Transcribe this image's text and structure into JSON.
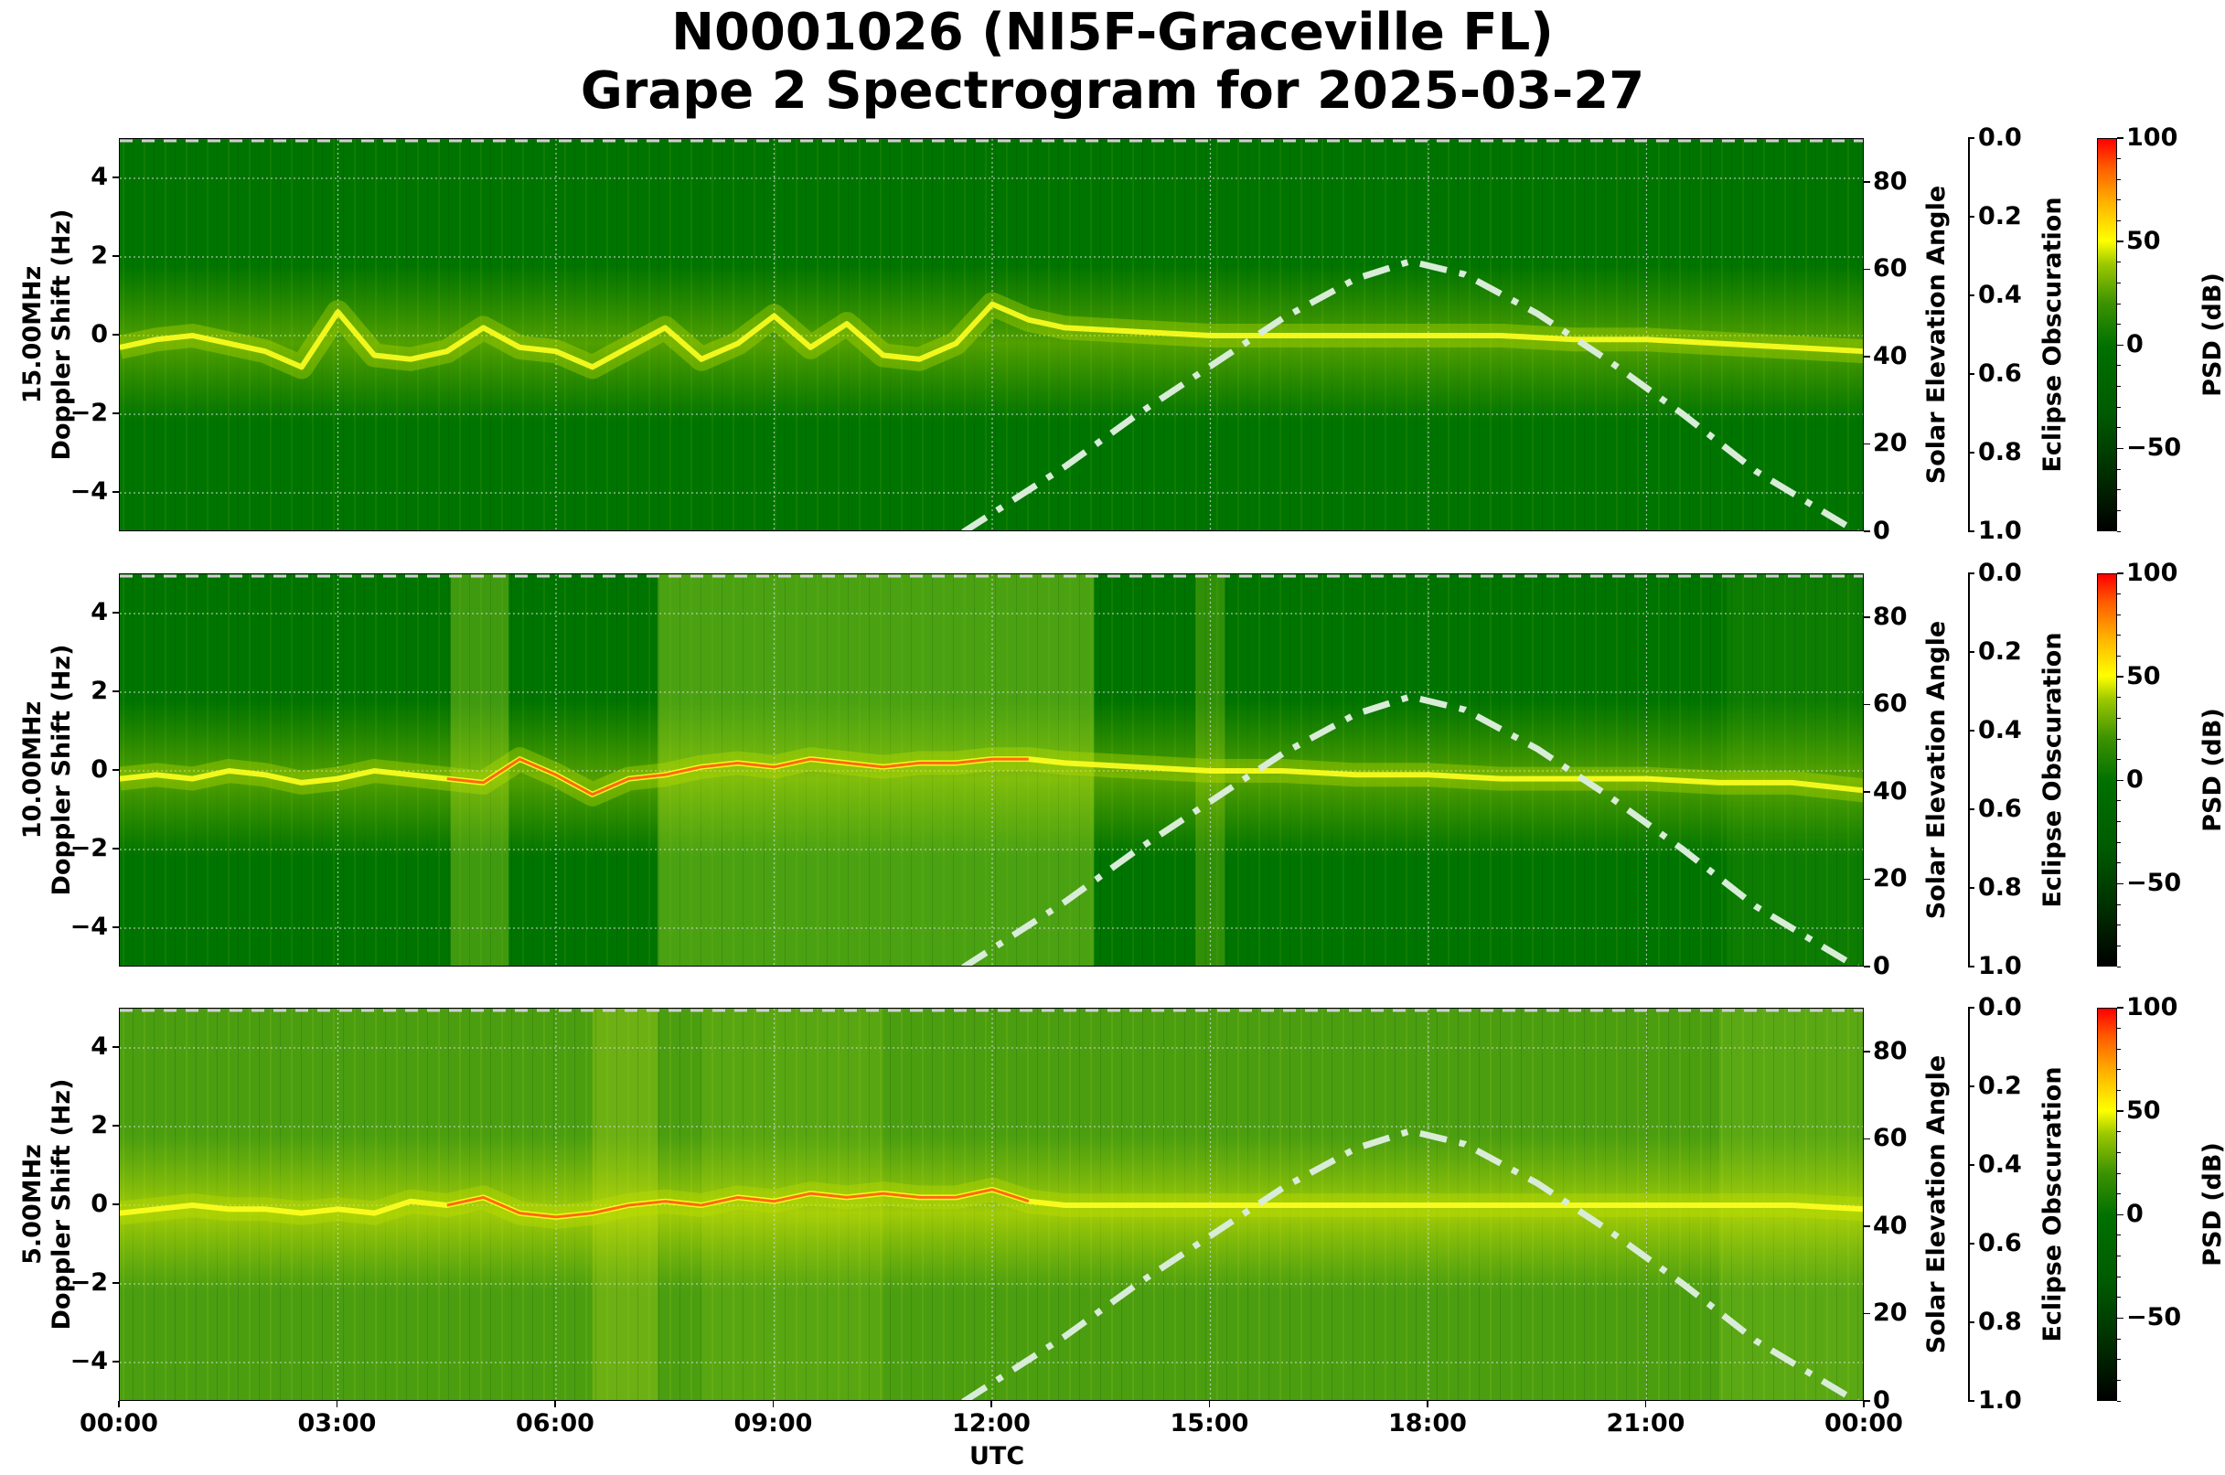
{
  "title": {
    "line1": "N0001026 (NI5F-Graceville FL)",
    "line2": "Grape 2 Spectrogram for 2025-03-27"
  },
  "panels": [
    {
      "freq_label": "15.00MHz",
      "ylabel": "Doppler Shift (Hz)",
      "right_label": "Solar Elevation Angle",
      "eclipse_label": "Eclipse Obscuration",
      "cbar_label": "PSD (dB)"
    },
    {
      "freq_label": "10.00MHz",
      "ylabel": "Doppler Shift (Hz)",
      "right_label": "Solar Elevation Angle",
      "eclipse_label": "Eclipse Obscuration",
      "cbar_label": "PSD (dB)"
    },
    {
      "freq_label": "5.00MHz",
      "ylabel": "Doppler Shift (Hz)",
      "right_label": "Solar Elevation Angle",
      "eclipse_label": "Eclipse Obscuration",
      "cbar_label": "PSD (dB)"
    }
  ],
  "axes": {
    "y_ticks": [
      "4",
      "2",
      "0",
      "−2",
      "−4"
    ],
    "elev_ticks": [
      "80",
      "60",
      "40",
      "20",
      "0"
    ],
    "eclipse_ticks": [
      "0.0",
      "0.2",
      "0.4",
      "0.6",
      "0.8",
      "1.0"
    ],
    "cbar_ticks": [
      "100",
      "50",
      "0",
      "−50"
    ],
    "x_ticks": [
      "00:00",
      "03:00",
      "06:00",
      "09:00",
      "12:00",
      "15:00",
      "18:00",
      "21:00",
      "00:00"
    ],
    "xlabel": "UTC"
  },
  "colors": {
    "background_dark": "#007000",
    "signal": "#ffff00",
    "strong": "#ff3000",
    "solar_curve": "#d8ecd8",
    "grid": "#d0d0d0"
  },
  "chart_data": {
    "type": "heatmap",
    "title": "N0001026 (NI5F-Graceville FL) Grape 2 Spectrogram for 2025-03-27",
    "xlabel": "UTC",
    "ylabel": "Doppler Shift (Hz)",
    "x_range_hours": [
      0,
      24
    ],
    "x_tick_labels": [
      "00:00",
      "03:00",
      "06:00",
      "09:00",
      "12:00",
      "15:00",
      "18:00",
      "21:00",
      "00:00"
    ],
    "ylim": [
      -5,
      5
    ],
    "secondary_y": {
      "label": "Solar Elevation Angle",
      "ylim": [
        0,
        90
      ],
      "ticks": [
        0,
        20,
        40,
        60,
        80
      ]
    },
    "tertiary_y": {
      "label": "Eclipse Obscuration",
      "ylim": [
        1.0,
        0.0
      ],
      "ticks": [
        0.0,
        0.2,
        0.4,
        0.6,
        0.8,
        1.0
      ]
    },
    "colorbar": {
      "label": "PSD (dB)",
      "range": [
        -90,
        100
      ],
      "ticks": [
        -50,
        0,
        50,
        100
      ],
      "colormap": "black-green-yellow-red"
    },
    "grid": true,
    "subplots": [
      {
        "name": "15.00MHz",
        "background_dB": -10,
        "doppler_trace": {
          "hours": [
            0,
            0.5,
            1,
            1.5,
            2,
            2.5,
            3,
            3.5,
            4,
            4.5,
            5,
            5.5,
            6,
            6.5,
            7,
            7.5,
            8,
            8.5,
            9,
            9.5,
            10,
            10.5,
            11,
            11.5,
            12,
            12.5,
            13,
            14,
            15,
            16,
            17,
            18,
            19,
            20,
            21,
            22,
            23,
            24
          ],
          "hz": [
            -0.3,
            -0.1,
            0.0,
            -0.2,
            -0.4,
            -0.8,
            0.6,
            -0.5,
            -0.6,
            -0.4,
            0.2,
            -0.3,
            -0.4,
            -0.8,
            -0.3,
            0.2,
            -0.6,
            -0.2,
            0.5,
            -0.3,
            0.3,
            -0.5,
            -0.6,
            -0.2,
            0.8,
            0.4,
            0.2,
            0.1,
            0.0,
            0.0,
            0.0,
            0.0,
            0.0,
            -0.1,
            -0.1,
            -0.2,
            -0.3,
            -0.4
          ]
        },
        "solar_elevation": {
          "hours": [
            11.6,
            13,
            14,
            15,
            16,
            17,
            17.75,
            18.5,
            19.5,
            20.5,
            21.5,
            22.5,
            23.9
          ],
          "deg": [
            0,
            15,
            27,
            38,
            49,
            58,
            62,
            59,
            50,
            39,
            27,
            14,
            0
          ]
        }
      },
      {
        "name": "10.00MHz",
        "background_dB": -5,
        "doppler_trace": {
          "hours": [
            0,
            0.5,
            1,
            1.5,
            2,
            2.5,
            3,
            3.5,
            4,
            4.5,
            5,
            5.5,
            6,
            6.5,
            7,
            7.5,
            8,
            8.5,
            9,
            9.5,
            10,
            10.5,
            11,
            11.5,
            12,
            12.5,
            13,
            14,
            15,
            16,
            17,
            18,
            19,
            20,
            21,
            22,
            23,
            24
          ],
          "hz": [
            -0.2,
            -0.1,
            -0.2,
            0.0,
            -0.1,
            -0.3,
            -0.2,
            0.0,
            -0.1,
            -0.2,
            -0.3,
            0.3,
            -0.1,
            -0.6,
            -0.2,
            -0.1,
            0.1,
            0.2,
            0.1,
            0.3,
            0.2,
            0.1,
            0.2,
            0.2,
            0.3,
            0.3,
            0.2,
            0.1,
            0.0,
            0.0,
            -0.1,
            -0.1,
            -0.2,
            -0.2,
            -0.2,
            -0.3,
            -0.3,
            -0.5
          ]
        },
        "solar_elevation": {
          "hours": [
            11.6,
            13,
            14,
            15,
            16,
            17,
            17.75,
            18.5,
            19.5,
            20.5,
            21.5,
            22.5,
            23.9
          ],
          "deg": [
            0,
            15,
            27,
            38,
            49,
            58,
            62,
            59,
            50,
            39,
            27,
            14,
            0
          ]
        }
      },
      {
        "name": "5.00MHz",
        "background_dB": 15,
        "doppler_trace": {
          "hours": [
            0,
            0.5,
            1,
            1.5,
            2,
            2.5,
            3,
            3.5,
            4,
            4.5,
            5,
            5.5,
            6,
            6.5,
            7,
            7.5,
            8,
            8.5,
            9,
            9.5,
            10,
            10.5,
            11,
            11.5,
            12,
            12.5,
            13,
            14,
            15,
            16,
            17,
            18,
            19,
            20,
            21,
            22,
            23,
            24
          ],
          "hz": [
            -0.2,
            -0.1,
            0.0,
            -0.1,
            -0.1,
            -0.2,
            -0.1,
            -0.2,
            0.1,
            0.0,
            0.2,
            -0.2,
            -0.3,
            -0.2,
            0.0,
            0.1,
            0.0,
            0.2,
            0.1,
            0.3,
            0.2,
            0.3,
            0.2,
            0.2,
            0.4,
            0.1,
            0.0,
            0.0,
            0.0,
            0.0,
            0.0,
            0.0,
            0.0,
            0.0,
            0.0,
            0.0,
            0.0,
            -0.1
          ]
        },
        "solar_elevation": {
          "hours": [
            11.6,
            13,
            14,
            15,
            16,
            17,
            17.75,
            18.5,
            19.5,
            20.5,
            21.5,
            22.5,
            23.9
          ],
          "deg": [
            0,
            15,
            27,
            38,
            49,
            58,
            62,
            59,
            50,
            39,
            27,
            14,
            0
          ]
        }
      }
    ]
  }
}
